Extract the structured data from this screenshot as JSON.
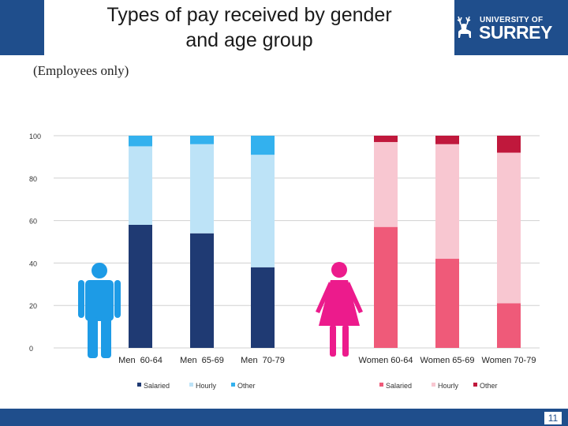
{
  "header": {
    "title_line1": "Types of pay received by gender",
    "title_line2": "and age group",
    "logo_top": "UNIVERSITY OF",
    "logo_name": "SURREY"
  },
  "subtitle": "(Employees only)",
  "footer": {
    "page_number": "11"
  },
  "colors": {
    "header_bg": "#1f4e8c",
    "men_salaried": "#1f3a73",
    "men_hourly": "#bde3f7",
    "men_other": "#33b1ee",
    "women_salaried": "#ef5a79",
    "women_hourly": "#f8c7d1",
    "women_other": "#c0183c",
    "man_figure": "#1d9be6",
    "woman_figure": "#ec1b8c"
  },
  "chart_data": {
    "type": "bar",
    "stacked": true,
    "title": "Types of pay received by gender and age group",
    "xlabel": "",
    "ylabel": "",
    "ylim": [
      0,
      100
    ],
    "yticks": [
      0,
      20,
      40,
      60,
      80,
      100
    ],
    "grid": true,
    "categories": [
      "Men  60-64",
      "Men  65-69",
      "Men  70-79",
      "Women 60-64",
      "Women 65-69",
      "Women 70-79"
    ],
    "series": [
      {
        "name": "Salaried",
        "group": "men",
        "values": [
          58,
          54,
          38,
          null,
          null,
          null
        ]
      },
      {
        "name": "Hourly",
        "group": "men",
        "values": [
          37,
          42,
          53,
          null,
          null,
          null
        ]
      },
      {
        "name": "Other",
        "group": "men",
        "values": [
          5,
          4,
          9,
          null,
          null,
          null
        ]
      },
      {
        "name": "Salaried",
        "group": "women",
        "values": [
          null,
          null,
          null,
          57,
          42,
          21
        ]
      },
      {
        "name": "Hourly",
        "group": "women",
        "values": [
          null,
          null,
          null,
          40,
          54,
          71
        ]
      },
      {
        "name": "Other",
        "group": "women",
        "values": [
          null,
          null,
          null,
          3,
          4,
          8
        ]
      }
    ],
    "legends": {
      "men": [
        "Salaried",
        "Hourly",
        "Other"
      ],
      "women": [
        "Salaried",
        "Hourly",
        "Other"
      ]
    }
  }
}
